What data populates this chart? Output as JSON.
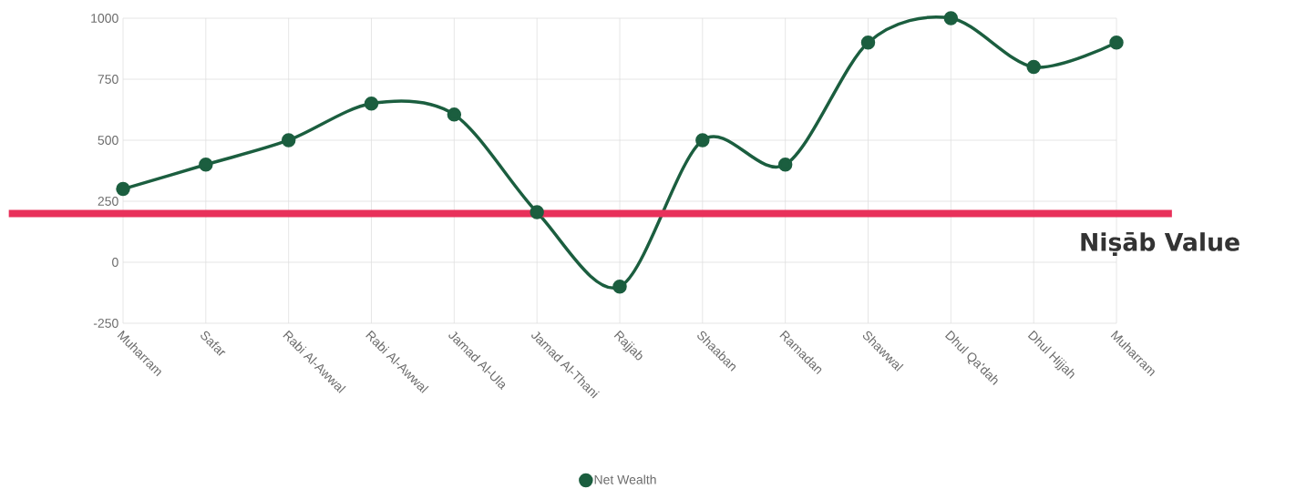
{
  "chart_data": {
    "type": "line",
    "categories": [
      "Muharram",
      "Safar",
      "Rabi Al-Awwal",
      "Rabi Al-Awwal",
      "Jamad Al-Ula",
      "Jamad Al-Thani",
      "Rajjab",
      "Shaaban",
      "Ramadan",
      "Shawwal",
      "Dhul Qa'dah",
      "Dhul Hijjah",
      "Muharram"
    ],
    "series": [
      {
        "name": "Net Wealth",
        "color": "#1b5e3f",
        "values": [
          300,
          400,
          500,
          650,
          605,
          205,
          -100,
          500,
          400,
          900,
          1000,
          800,
          900
        ]
      }
    ],
    "ylim": [
      -250,
      1000
    ],
    "yticks": [
      -250,
      0,
      250,
      500,
      750,
      1000
    ],
    "ref_lines": [
      {
        "axis": "y",
        "value": 200,
        "label": "Niṣāb Value",
        "color": "#e8305a"
      }
    ],
    "grid": true,
    "legend": "bottom",
    "marker": "circle",
    "line_style": "solid"
  }
}
